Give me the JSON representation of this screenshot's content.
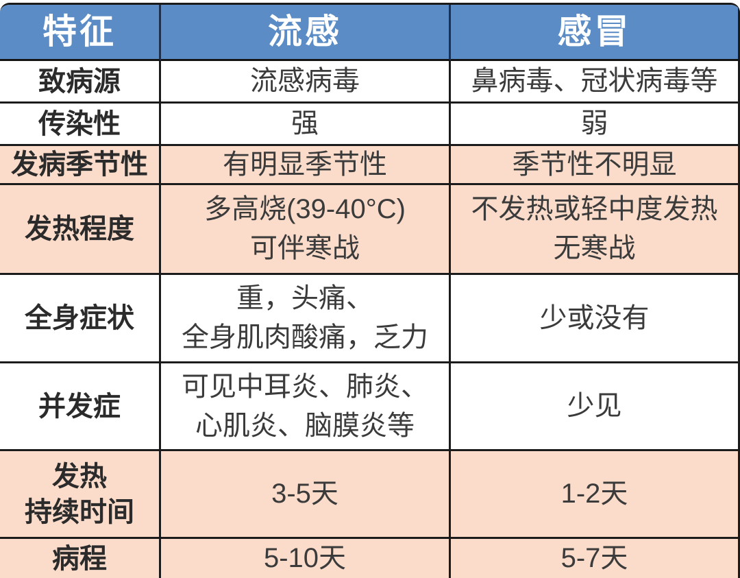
{
  "colors": {
    "header_bg": "#5b8cc5",
    "header_text": "#ffffff",
    "pink_row_bg": "#fbdcca",
    "white_row_bg": "#ffffff",
    "border": "#1b1b1b",
    "feature_text": "#2b2b2b",
    "value_text": "#3b3b3b"
  },
  "chart_data": {
    "type": "table",
    "columns": [
      "特征",
      "流感",
      "感冒"
    ],
    "rows": [
      {
        "feature": "致病源",
        "flu": "流感病毒",
        "cold": "鼻病毒、冠状病毒等",
        "row_bg": "white"
      },
      {
        "feature": "传染性",
        "flu": "强",
        "cold": "弱",
        "row_bg": "white"
      },
      {
        "feature": "发病季节性",
        "flu": "有明显季节性",
        "cold": "季节性不明显",
        "row_bg": "pink"
      },
      {
        "feature": "发热程度",
        "flu": "多高烧(39-40°C)\n可伴寒战",
        "cold": "不发热或轻中度发热\n无寒战",
        "row_bg": "pink"
      },
      {
        "feature": "全身症状",
        "flu": "重，头痛、\n全身肌肉酸痛，乏力",
        "cold": "少或没有",
        "row_bg": "white"
      },
      {
        "feature": "并发症",
        "flu": "可见中耳炎、肺炎、\n心肌炎、脑膜炎等",
        "cold": "少见",
        "row_bg": "white"
      },
      {
        "feature": "发热\n持续时间",
        "flu": "3-5天",
        "cold": "1-2天",
        "row_bg": "pink"
      },
      {
        "feature": "病程",
        "flu": "5-10天",
        "cold": "5-7天",
        "row_bg": "pink"
      }
    ]
  }
}
